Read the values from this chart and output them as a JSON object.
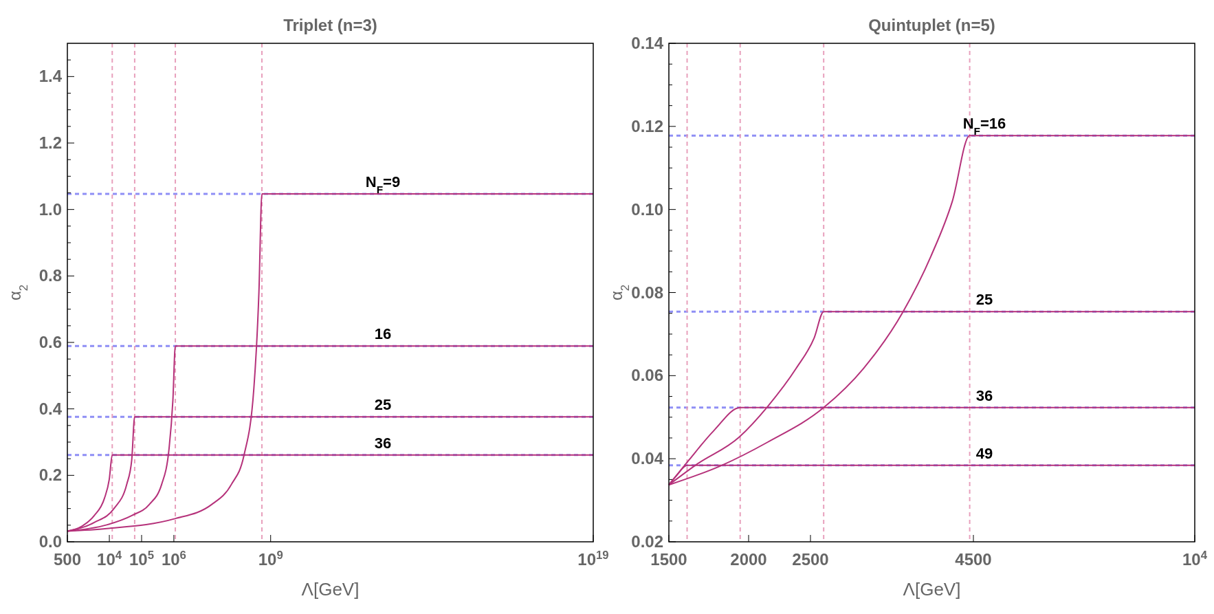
{
  "chart_data": [
    {
      "type": "line",
      "title": "Triplet (n=3)",
      "xlabel": "Λ[GeV]",
      "ylabel": "α$_{2}$",
      "log": "x",
      "grid": false,
      "marker": "none",
      "line_style": "solid",
      "xlim": [
        500,
        1e+19
      ],
      "xticks": [
        {
          "value": 500,
          "label": "500"
        },
        {
          "value": 10000,
          "label": "10$^{4}$"
        },
        {
          "value": 100000,
          "label": "10$^{5}$"
        },
        {
          "value": 1000000,
          "label": "10$^{6}$"
        },
        {
          "value": 1000000000,
          "label": "10$^{9}$"
        },
        {
          "value": 1e+19,
          "label": "10$^{19}$"
        }
      ],
      "ylim": [
        0,
        1.5
      ],
      "yticks": [
        {
          "value": 0,
          "label": "0.0"
        },
        {
          "value": 0.05,
          "label": null
        },
        {
          "value": 0.1,
          "label": null
        },
        {
          "value": 0.15,
          "label": null
        },
        0.2,
        {
          "value": 0.25,
          "label": null
        },
        {
          "value": 0.3,
          "label": null
        },
        {
          "value": 0.35,
          "label": null
        },
        0.4,
        {
          "value": 0.45,
          "label": null
        },
        {
          "value": 0.5,
          "label": null
        },
        {
          "value": 0.55,
          "label": null
        },
        0.6,
        {
          "value": 0.65,
          "label": null
        },
        {
          "value": 0.7,
          "label": null
        },
        {
          "value": 0.75,
          "label": null
        },
        0.8,
        {
          "value": 0.85,
          "label": null
        },
        {
          "value": 0.9,
          "label": null
        },
        {
          "value": 0.95,
          "label": null
        },
        {
          "value": 1,
          "label": "1.0"
        },
        {
          "value": 1.05,
          "label": null
        },
        {
          "value": 1.1,
          "label": null
        },
        {
          "value": 1.15,
          "label": null
        },
        1.2,
        {
          "value": 1.25,
          "label": null
        },
        {
          "value": 1.3,
          "label": null
        },
        {
          "value": 1.35,
          "label": null
        },
        1.4,
        {
          "value": 1.45,
          "label": null
        }
      ],
      "ref_lines": [
        {
          "axis": "y",
          "value": 1.047,
          "color": "#8f8ff5",
          "line_style": "dashed"
        },
        {
          "axis": "y",
          "value": 0.589,
          "color": "#8f8ff5",
          "line_style": "dashed"
        },
        {
          "axis": "y",
          "value": 0.376,
          "color": "#8f8ff5",
          "line_style": "dashed"
        },
        {
          "axis": "y",
          "value": 0.261,
          "color": "#8f8ff5",
          "line_style": "dashed"
        },
        {
          "axis": "x",
          "value": 12300,
          "color": "#e8a0bc",
          "line_style": "dashed"
        },
        {
          "axis": "x",
          "value": 61000,
          "color": "#e8a0bc",
          "line_style": "dashed"
        },
        {
          "axis": "x",
          "value": 1110000,
          "color": "#e8a0bc",
          "line_style": "dashed"
        },
        {
          "axis": "x",
          "value": 536000000,
          "color": "#e8a0bc",
          "line_style": "dashed"
        }
      ],
      "series": [
        {
          "name": "N$_{F}$=9",
          "color": "#b5317a",
          "x": [
            500,
            8300,
            1020000,
            14700000,
            61000000,
            149000000,
            302000000,
            433000000,
            536000000,
            1e+19
          ],
          "values": [
            0.032,
            0.04,
            0.069,
            0.112,
            0.173,
            0.26,
            0.462,
            0.751,
            1.047,
            1.047
          ]
        },
        {
          "name": "16",
          "color": "#b5317a",
          "x": [
            500,
            8300,
            49400,
            172000,
            419000,
            713000,
            933000,
            1110000,
            1e+19
          ],
          "values": [
            0.032,
            0.051,
            0.079,
            0.112,
            0.173,
            0.282,
            0.426,
            0.589,
            0.589
          ]
        },
        {
          "name": "25",
          "color": "#b5317a",
          "x": [
            500,
            3400,
            14200,
            34600,
            49400,
            61000,
            1e+19
          ],
          "values": [
            0.032,
            0.058,
            0.101,
            0.173,
            0.246,
            0.376,
            0.376
          ]
        },
        {
          "name": "36",
          "color": "#b5317a",
          "x": [
            500,
            1410,
            3400,
            7000,
            9950,
            12300,
            1e+19
          ],
          "values": [
            0.032,
            0.047,
            0.079,
            0.13,
            0.188,
            0.261,
            0.261
          ]
        }
      ]
    },
    {
      "type": "line",
      "title": "Quintuplet (n=5)",
      "xlabel": "Λ[GeV]",
      "ylabel": "α$_{2}$",
      "log": "x",
      "grid": false,
      "marker": "none",
      "line_style": "solid",
      "xlim": [
        1500,
        10000
      ],
      "xticks": [
        1500,
        2000,
        2500,
        4500,
        {
          "value": 10000,
          "label": "10$^{4}$"
        }
      ],
      "ylim": [
        0.02,
        0.14
      ],
      "yticks": [
        0.02,
        {
          "value": 0.025,
          "label": null
        },
        {
          "value": 0.03,
          "label": null
        },
        {
          "value": 0.035,
          "label": null
        },
        0.04,
        {
          "value": 0.045,
          "label": null
        },
        {
          "value": 0.05,
          "label": null
        },
        {
          "value": 0.055,
          "label": null
        },
        0.06,
        {
          "value": 0.065,
          "label": null
        },
        {
          "value": 0.07,
          "label": null
        },
        {
          "value": 0.075,
          "label": null
        },
        0.08,
        {
          "value": 0.085,
          "label": null
        },
        {
          "value": 0.09,
          "label": null
        },
        {
          "value": 0.095,
          "label": null
        },
        {
          "value": 0.1,
          "label": "0.10"
        },
        {
          "value": 0.105,
          "label": null
        },
        {
          "value": 0.11,
          "label": null
        },
        {
          "value": 0.115,
          "label": null
        },
        0.12,
        {
          "value": 0.125,
          "label": null
        },
        {
          "value": 0.13,
          "label": null
        },
        {
          "value": 0.135,
          "label": null
        },
        0.14
      ],
      "ref_lines": [
        {
          "axis": "y",
          "value": 0.1178,
          "color": "#8f8ff5",
          "line_style": "dashed"
        },
        {
          "axis": "y",
          "value": 0.0754,
          "color": "#8f8ff5",
          "line_style": "dashed"
        },
        {
          "axis": "y",
          "value": 0.0523,
          "color": "#8f8ff5",
          "line_style": "dashed"
        },
        {
          "axis": "y",
          "value": 0.0384,
          "color": "#8f8ff5",
          "line_style": "dashed"
        },
        {
          "axis": "x",
          "value": 1602,
          "color": "#e8a0bc",
          "line_style": "dashed"
        },
        {
          "axis": "x",
          "value": 1940,
          "color": "#e8a0bc",
          "line_style": "dashed"
        },
        {
          "axis": "x",
          "value": 2622,
          "color": "#e8a0bc",
          "line_style": "dashed"
        },
        {
          "axis": "x",
          "value": 4440,
          "color": "#e8a0bc",
          "line_style": "dashed"
        }
      ],
      "series": [
        {
          "name": "N$_{F}$=16",
          "color": "#b5317a",
          "x": [
            1500,
            1815,
            2143,
            2622,
            3026,
            3486,
            3862,
            4171,
            4440,
            10000
          ],
          "values": [
            0.0337,
            0.0384,
            0.044,
            0.0523,
            0.0617,
            0.0752,
            0.0888,
            0.102,
            0.1178,
            0.1178
          ]
        },
        {
          "name": "25",
          "color": "#b5317a",
          "x": [
            1500,
            1657,
            1933,
            2143,
            2373,
            2534,
            2622,
            10000
          ],
          "values": [
            0.0337,
            0.0386,
            0.0452,
            0.0526,
            0.0617,
            0.0691,
            0.0754,
            0.0754
          ]
        },
        {
          "name": "36",
          "color": "#b5317a",
          "x": [
            1500,
            1615,
            1765,
            1940,
            10000
          ],
          "values": [
            0.0337,
            0.0398,
            0.0468,
            0.0523,
            0.0523
          ]
        },
        {
          "name": "49",
          "color": "#b5317a",
          "x": [
            1500,
            1545,
            1602,
            10000
          ],
          "values": [
            0.0337,
            0.0361,
            0.0384,
            0.0384
          ]
        }
      ]
    }
  ]
}
